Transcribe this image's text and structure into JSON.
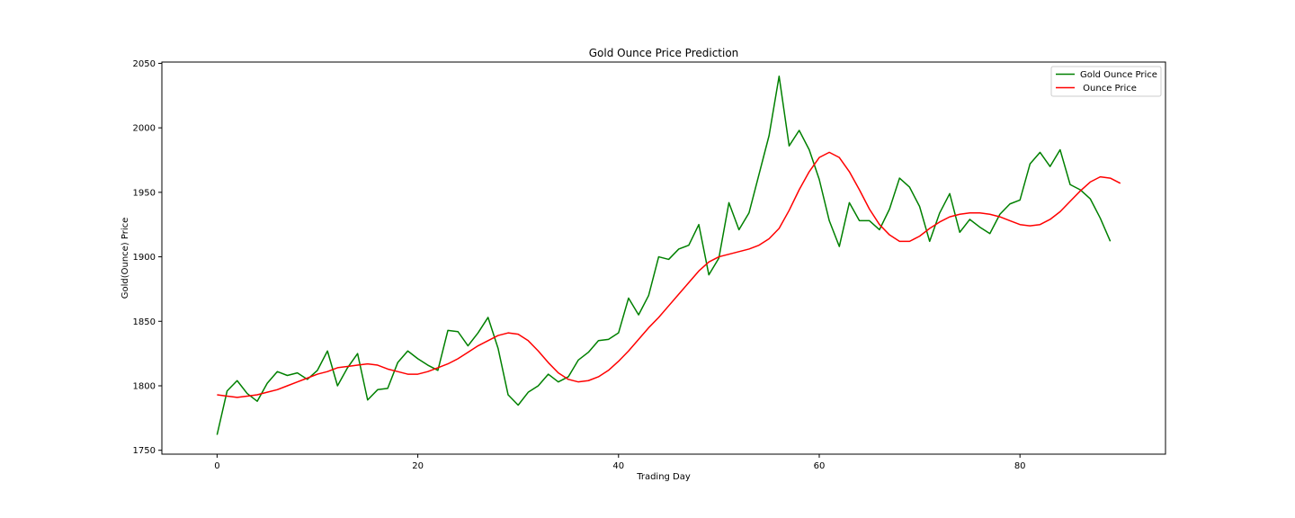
{
  "chart_data": {
    "type": "line",
    "title": "Gold Ounce Price Prediction",
    "xlabel": "Trading Day",
    "ylabel": "Gold(Ounce) Price",
    "xlim": [
      -5.5,
      94.5
    ],
    "ylim": [
      1747,
      2051
    ],
    "xticks": [
      0,
      20,
      40,
      60,
      80
    ],
    "yticks": [
      1750,
      1800,
      1850,
      1900,
      1950,
      2000,
      2050
    ],
    "grid": false,
    "legend_position": "top-right",
    "series": [
      {
        "name": "Gold Ounce Price",
        "color": "#008000",
        "values": [
          1762,
          1796,
          1804,
          1794,
          1788,
          1802,
          1811,
          1808,
          1810,
          1805,
          1812,
          1827,
          1800,
          1814,
          1825,
          1789,
          1797,
          1798,
          1818,
          1827,
          1821,
          1816,
          1812,
          1843,
          1842,
          1831,
          1841,
          1853,
          1829,
          1793,
          1785,
          1795,
          1800,
          1809,
          1803,
          1807,
          1820,
          1826,
          1835,
          1836,
          1841,
          1868,
          1855,
          1870,
          1900,
          1898,
          1906,
          1909,
          1925,
          1886,
          1899,
          1942,
          1921,
          1934,
          1964,
          1994,
          2040,
          1986,
          1998,
          1983,
          1960,
          1928,
          1908,
          1942,
          1928,
          1928,
          1921,
          1937,
          1961,
          1954,
          1939,
          1912,
          1934,
          1949,
          1919,
          1929,
          1923,
          1918,
          1933,
          1941,
          1944,
          1972,
          1981,
          1970,
          1983,
          1956,
          1952,
          1945,
          1930,
          1912
        ]
      },
      {
        "name": " Ounce Price",
        "color": "#ff0000",
        "values": [
          1793,
          1792,
          1791,
          1792,
          1793,
          1795,
          1797,
          1800,
          1803,
          1806,
          1809,
          1811,
          1814,
          1815,
          1816,
          1817,
          1816,
          1813,
          1811,
          1809,
          1809,
          1811,
          1814,
          1817,
          1821,
          1826,
          1831,
          1835,
          1839,
          1841,
          1840,
          1835,
          1827,
          1818,
          1810,
          1805,
          1803,
          1804,
          1807,
          1812,
          1819,
          1827,
          1836,
          1845,
          1853,
          1862,
          1871,
          1880,
          1889,
          1896,
          1900,
          1902,
          1904,
          1906,
          1909,
          1914,
          1922,
          1936,
          1952,
          1966,
          1977,
          1981,
          1977,
          1966,
          1952,
          1937,
          1925,
          1917,
          1912,
          1912,
          1916,
          1922,
          1927,
          1931,
          1933,
          1934,
          1934,
          1933,
          1931,
          1928,
          1925,
          1924,
          1925,
          1929,
          1935,
          1943,
          1951,
          1958,
          1962,
          1961,
          1957
        ]
      }
    ]
  }
}
